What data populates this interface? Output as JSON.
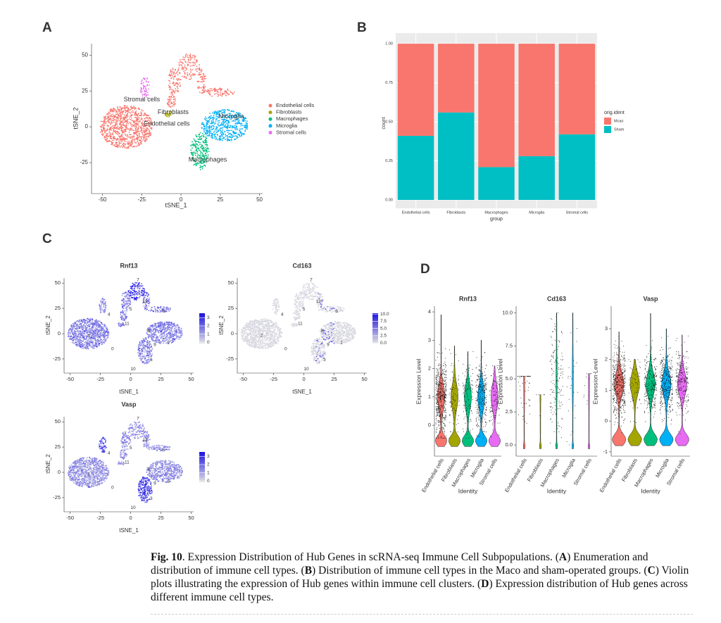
{
  "panel_labels": [
    "A",
    "B",
    "C",
    "D"
  ],
  "panel_a": {
    "type": "scatter",
    "xlabel": "tSNE_1",
    "ylabel": "tSNE_2",
    "xlim": [
      -57,
      52
    ],
    "ylim": [
      -46.6,
      58
    ],
    "xticks": [
      -50,
      -25,
      0,
      25,
      50
    ],
    "yticks": [
      -25,
      0,
      25,
      50
    ],
    "legend": [
      {
        "name": "Endothelial cells",
        "color": "#F8766D"
      },
      {
        "name": "Fibroblasts",
        "color": "#A3A500"
      },
      {
        "name": "Macrophages",
        "color": "#00BF7D"
      },
      {
        "name": "Microglia",
        "color": "#00B0F6"
      },
      {
        "name": "Stromal cells",
        "color": "#E76BF3"
      }
    ],
    "annotations": [
      {
        "text": "Stromal cells",
        "x": -25,
        "y": 19
      },
      {
        "text": "Fibroblasts",
        "x": -5,
        "y": 10
      },
      {
        "text": "Endothelial cells",
        "x": -9,
        "y": 2
      },
      {
        "text": "Microglia",
        "x": 32,
        "y": 7
      },
      {
        "text": "Macrophages",
        "x": 17,
        "y": -23
      }
    ]
  },
  "panel_b": {
    "type": "bar",
    "stacked": true,
    "xlabel": "group",
    "ylabel": "count",
    "legend_title": "orig.ident",
    "categories": [
      "Endothelial cells",
      "Fibroblasts",
      "Macrophages",
      "Microglia",
      "Stromal cells"
    ],
    "series": [
      {
        "name": "Mcao",
        "color": "#F8766D",
        "values": [
          0.59,
          0.44,
          0.79,
          0.72,
          0.58
        ]
      },
      {
        "name": "Sham",
        "color": "#00BFC4",
        "values": [
          0.41,
          0.56,
          0.21,
          0.28,
          0.42
        ]
      }
    ],
    "ylim": [
      -0.054,
      1.068
    ],
    "yticks": [
      {
        "value": 0,
        "label": "0.00"
      },
      {
        "value": 0.25,
        "label": "0.25"
      },
      {
        "value": 0.5,
        "label": "0.50"
      },
      {
        "value": 0.75,
        "label": "0.75"
      },
      {
        "value": 1,
        "label": "1.00"
      }
    ],
    "grid": true
  },
  "panel_c": {
    "xlabel": "tSNE_1",
    "ylabel": "tSNE_2",
    "xlim": [
      -55,
      52
    ],
    "ylim": [
      -39,
      55
    ],
    "xticks": [
      -50,
      -25,
      0,
      25,
      50
    ],
    "yticks": [
      -25,
      0,
      25,
      50
    ],
    "cluster_labels": [
      {
        "text": "7",
        "x": 6,
        "y": 53
      },
      {
        "text": "12",
        "x": 12,
        "y": 32
      },
      {
        "text": "5",
        "x": 0,
        "y": 24
      },
      {
        "text": "6",
        "x": 27,
        "y": 22
      },
      {
        "text": "4",
        "x": -18,
        "y": 19
      },
      {
        "text": "11",
        "x": -3,
        "y": 10
      },
      {
        "text": "8",
        "x": 15,
        "y": 3
      },
      {
        "text": "2",
        "x": -35,
        "y": -2
      },
      {
        "text": "1",
        "x": 31,
        "y": -9
      },
      {
        "text": "9",
        "x": 20,
        "y": -11
      },
      {
        "text": "0",
        "x": -15,
        "y": -15
      },
      {
        "text": "3",
        "x": 17,
        "y": -26
      },
      {
        "text": "10",
        "x": 2,
        "y": -35
      }
    ],
    "plots": [
      {
        "title": "Rnf13",
        "colorbar_lim": [
          -0.15,
          3.55
        ],
        "colorbar_ticks": [
          3,
          2,
          1,
          0
        ]
      },
      {
        "title": "Cd163",
        "colorbar_lim": [
          -0.2,
          10.3
        ],
        "colorbar_ticks": [
          {
            "value": 10,
            "label": "10.0"
          },
          {
            "value": 7.5,
            "label": "7.5"
          },
          {
            "value": 5,
            "label": "5.0"
          },
          {
            "value": 2.5,
            "label": "2.5"
          },
          {
            "value": 0,
            "label": "0.0"
          }
        ]
      },
      {
        "title": "Vasp",
        "colorbar_lim": [
          -0.15,
          3.55
        ],
        "colorbar_ticks": [
          3,
          2,
          1,
          0
        ]
      }
    ]
  },
  "panel_d": {
    "ylabel": "Expression Level",
    "xlabel": "Identity",
    "categories": [
      "Endothelial cells",
      "Fibroblasts",
      "Macrophages",
      "Microglia",
      "Stromal cells"
    ],
    "colors": [
      "#F8766D",
      "#A3A500",
      "#00BF7D",
      "#00B0F6",
      "#E76BF3"
    ],
    "plots": [
      {
        "title": "Rnf13",
        "ylim": [
          -1.09,
          4.2
        ],
        "yticks": [
          0,
          1,
          2,
          3,
          4
        ]
      },
      {
        "title": "Cd163",
        "ylim": [
          -0.85,
          10.5
        ],
        "yticks": [
          {
            "value": 0,
            "label": "0.0"
          },
          {
            "value": 2.5,
            "label": "2.5"
          },
          {
            "value": 5,
            "label": "5.0"
          },
          {
            "value": 7.5,
            "label": "7.5"
          },
          {
            "value": 10,
            "label": "10.0"
          }
        ]
      },
      {
        "title": "Vasp",
        "ylim": [
          -1.14,
          3.73
        ],
        "yticks": [
          -1,
          0,
          1,
          2,
          3
        ]
      }
    ]
  },
  "caption": {
    "runs": [
      {
        "text": "Fig. 10",
        "bold": true
      },
      {
        "text": ".  Expression Distribution of Hub Genes in scRNA-seq Immune Cell Subpopulations. (",
        "bold": false
      },
      {
        "text": "A",
        "bold": true
      },
      {
        "text": ") Enumeration and distribution of immune cell types. (",
        "bold": false
      },
      {
        "text": "B",
        "bold": true
      },
      {
        "text": ") Distribution of immune cell types in the Maco and sham-operated groups. (",
        "bold": false
      },
      {
        "text": "C",
        "bold": true
      },
      {
        "text": ") Violin plots illustrating the expression of Hub genes within immune cell clusters. (",
        "bold": false
      },
      {
        "text": "D",
        "bold": true
      },
      {
        "text": ") Expression distribution of Hub genes across different immune cell types.",
        "bold": false
      }
    ]
  }
}
